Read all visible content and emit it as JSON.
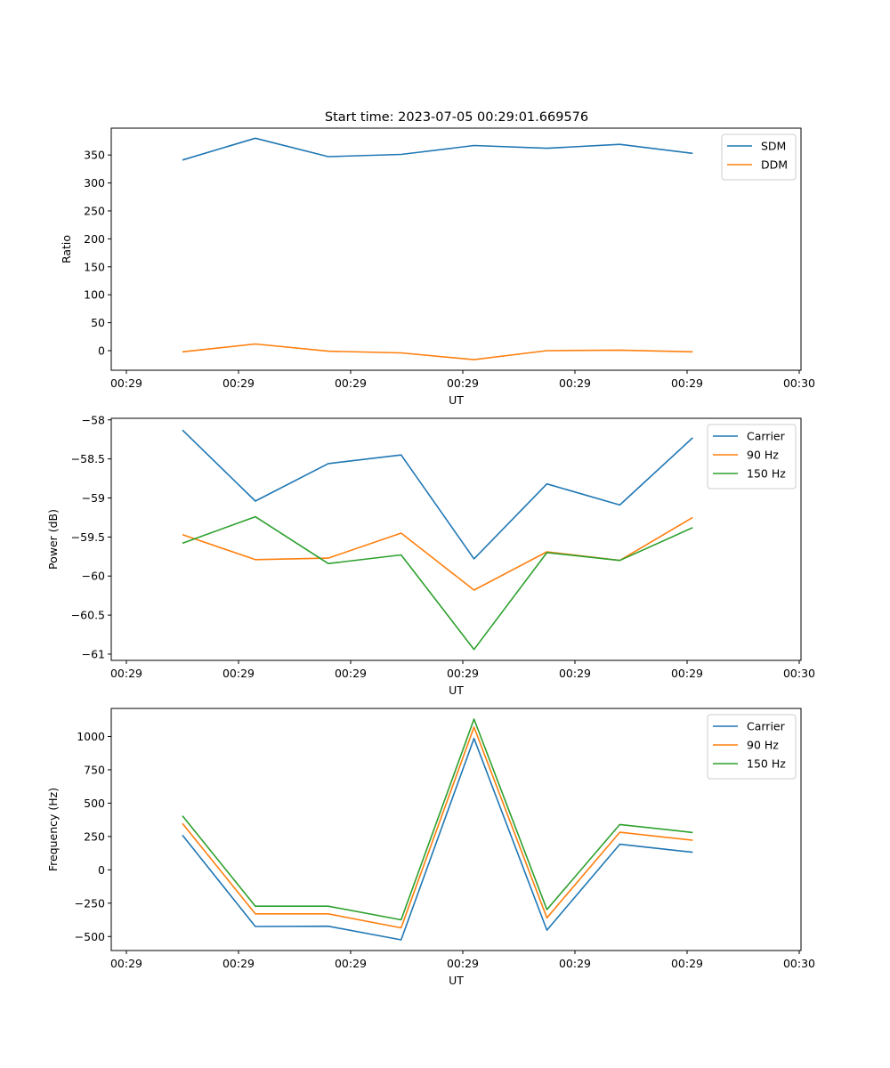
{
  "title": "Start time: 2023-07-05 00:29:01.669576",
  "chart_data": [
    {
      "type": "line",
      "xlabel": "UT",
      "ylabel": "Ratio",
      "x_ticks": [
        "00:29",
        "00:29",
        "00:29",
        "00:29",
        "00:29",
        "00:29",
        "00:30"
      ],
      "xlim": [
        0,
        7
      ],
      "x": [
        0.5,
        1.15,
        1.8,
        2.45,
        3.1,
        3.75,
        4.4,
        5.05
      ],
      "ylim": [
        -35,
        398
      ],
      "y_ticks": [
        0,
        50,
        100,
        150,
        200,
        250,
        300,
        350
      ],
      "legend_position": "top-right",
      "series": [
        {
          "name": "SDM",
          "color": "#1f77b4",
          "values": [
            341,
            380,
            347,
            351,
            367,
            362,
            369,
            353
          ]
        },
        {
          "name": "DDM",
          "color": "#ff7f0e",
          "values": [
            -2,
            12,
            -1,
            -4,
            -16,
            0,
            1,
            -2
          ]
        }
      ]
    },
    {
      "type": "line",
      "xlabel": "UT",
      "ylabel": "Power (dB)",
      "x_ticks": [
        "00:29",
        "00:29",
        "00:29",
        "00:29",
        "00:29",
        "00:29",
        "00:30"
      ],
      "xlim": [
        0,
        7
      ],
      "x": [
        0.5,
        1.15,
        1.8,
        2.45,
        3.1,
        3.75,
        4.4,
        5.05
      ],
      "ylim": [
        -61.08,
        -57.98
      ],
      "y_ticks": [
        -58.0,
        -58.5,
        -59.0,
        -59.5,
        -60.0,
        -60.5,
        -61.0
      ],
      "legend_position": "top-right",
      "series": [
        {
          "name": "Carrier",
          "color": "#1f77b4",
          "values": [
            -58.13,
            -59.04,
            -58.56,
            -58.45,
            -59.78,
            -58.82,
            -59.09,
            -58.23
          ]
        },
        {
          "name": "90 Hz",
          "color": "#ff7f0e",
          "values": [
            -59.47,
            -59.79,
            -59.77,
            -59.45,
            -60.18,
            -59.69,
            -59.8,
            -59.25
          ]
        },
        {
          "name": "150 Hz",
          "color": "#2ca02c",
          "values": [
            -59.58,
            -59.24,
            -59.84,
            -59.73,
            -60.94,
            -59.7,
            -59.8,
            -59.38
          ]
        }
      ]
    },
    {
      "type": "line",
      "xlabel": "UT",
      "ylabel": "Frequency (Hz)",
      "x_ticks": [
        "00:29",
        "00:29",
        "00:29",
        "00:29",
        "00:29",
        "00:29",
        "00:30"
      ],
      "xlim": [
        0,
        7
      ],
      "x": [
        0.5,
        1.15,
        1.8,
        2.45,
        3.1,
        3.75,
        4.4,
        5.05
      ],
      "ylim": [
        -605,
        1210
      ],
      "y_ticks": [
        -500,
        -250,
        0,
        250,
        500,
        750,
        1000
      ],
      "legend_position": "top-right",
      "series": [
        {
          "name": "Carrier",
          "color": "#1f77b4",
          "values": [
            260,
            -425,
            -423,
            -525,
            985,
            -452,
            192,
            132
          ]
        },
        {
          "name": "90 Hz",
          "color": "#ff7f0e",
          "values": [
            348,
            -330,
            -330,
            -435,
            1070,
            -360,
            282,
            222
          ]
        },
        {
          "name": "150 Hz",
          "color": "#2ca02c",
          "values": [
            405,
            -273,
            -273,
            -375,
            1130,
            -298,
            340,
            280
          ]
        }
      ]
    }
  ]
}
